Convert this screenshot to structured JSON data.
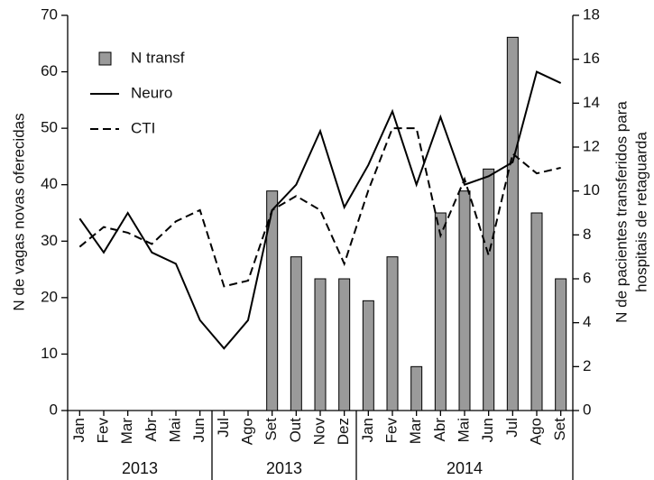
{
  "chart_data": {
    "type": "bar-line",
    "categories": [
      "Jan",
      "Fev",
      "Mar",
      "Abr",
      "Mai",
      "Jun",
      "Jul",
      "Ago",
      "Set",
      "Out",
      "Nov",
      "Dez",
      "Jan",
      "Fev",
      "Mar",
      "Abr",
      "Mai",
      "Jun",
      "Jul",
      "Ago",
      "Set"
    ],
    "groups": [
      {
        "label": "2013",
        "size": 6
      },
      {
        "label": "2013",
        "size": 6
      },
      {
        "label": "2014",
        "size": 9
      }
    ],
    "ylabel": "N de vagas novas oferecidas",
    "y2label": [
      "N de pacientes transferidos para",
      "hospitais de retaguarda"
    ],
    "ylim": [
      0,
      70
    ],
    "yticks": [
      0,
      10,
      20,
      30,
      40,
      50,
      60,
      70
    ],
    "y2lim": [
      0,
      18
    ],
    "y2ticks": [
      0,
      2,
      4,
      6,
      8,
      10,
      12,
      14,
      16,
      18
    ],
    "legend": "upper left",
    "series": [
      {
        "name": "N transf",
        "type": "bar",
        "axis": "y2",
        "color": "#9a9a9a",
        "values": [
          null,
          null,
          null,
          null,
          null,
          null,
          null,
          null,
          10,
          7,
          6,
          6,
          5,
          7,
          2,
          9,
          10,
          11,
          17,
          9,
          6
        ]
      },
      {
        "name": "Neuro",
        "type": "line",
        "dash": false,
        "color": "#000000",
        "values": [
          34,
          28,
          35,
          28,
          26,
          16,
          11,
          16,
          35.5,
          40,
          49.5,
          36,
          43.5,
          53,
          40,
          52,
          40,
          41.5,
          44,
          60,
          58
        ]
      },
      {
        "name": "CTI",
        "type": "line",
        "dash": true,
        "color": "#000000",
        "values": [
          29,
          32.5,
          31.5,
          29.5,
          33.5,
          35.5,
          22,
          23,
          35.5,
          38,
          35.5,
          26,
          39,
          50,
          50,
          31,
          41,
          27.5,
          45.5,
          42,
          43
        ]
      }
    ]
  }
}
